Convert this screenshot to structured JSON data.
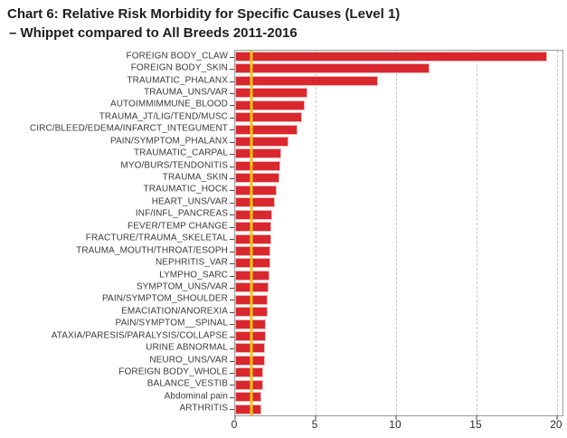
{
  "chart_data": {
    "type": "bar",
    "orientation": "horizontal",
    "title": "Chart 6: Relative Risk Morbidity for Specific Causes (Level 1)",
    "subtitle": "–  Whippet compared to All Breeds 2011-2016",
    "categories": [
      "FOREIGN BODY_CLAW",
      "FOREIGN BODY_SKIN",
      "TRAUMATIC_PHALANX",
      "TRAUMA_UNS/VAR",
      "AUTOIMMIMMUNE_BLOOD",
      "TRAUMA_JT/LIG/TEND/MUSC",
      "CIRC/BLEED/EDEMA/INFARCT_INTEGUMENT",
      "PAIN/SYMPTOM_PHALANX",
      "TRAUMATIC_CARPAL",
      "MYO/BURS/TENDONITIS",
      "TRAUMA_SKIN",
      "TRAUMATIC_HOCK",
      "HEART_UNS/VAR",
      "INF/INFL_PANCREAS",
      "FEVER/TEMP CHANGE",
      "FRACTURE/TRAUMA_SKELETAL",
      "TRAUMA_MOUTH/THROAT/ESOPH",
      "NEPHRITIS_VAR",
      "LYMPHO_SARC",
      "SYMPTOM_UNS/VAR",
      "PAIN/SYMPTOM_SHOULDER",
      "EMACIATION/ANOREXIA",
      "PAIN/SYMPTOM__SPINAL",
      "ATAXIA/PARESIS/PARALYSIS/COLLAPSE",
      "URINE ABNORMAL",
      "NEURO_UNS/VAR",
      "FOREIGN BODY_WHOLE",
      "BALANCE_VESTIB",
      "Abdominal pain",
      "ARTHRITIS"
    ],
    "values": [
      19.4,
      12.1,
      8.9,
      4.5,
      4.3,
      4.15,
      3.9,
      3.3,
      2.85,
      2.8,
      2.75,
      2.6,
      2.5,
      2.3,
      2.25,
      2.25,
      2.2,
      2.2,
      2.15,
      2.1,
      2.0,
      2.0,
      1.9,
      1.9,
      1.85,
      1.85,
      1.75,
      1.75,
      1.65,
      1.65
    ],
    "xlabel": "",
    "ylabel": "",
    "xlim": [
      0,
      20.34
    ],
    "xticks": [
      0,
      5,
      10,
      15,
      20
    ],
    "xtick_labels": [
      "0",
      "5",
      "10",
      "15",
      "20"
    ],
    "grid": "vertical-dashed",
    "legend": "none",
    "reference_line": {
      "value": 1,
      "color": "#f2c516"
    },
    "bar_color": "#d9272e",
    "bar_border_color": "#f4b2b2",
    "frame_color": "#9b9b9b"
  }
}
